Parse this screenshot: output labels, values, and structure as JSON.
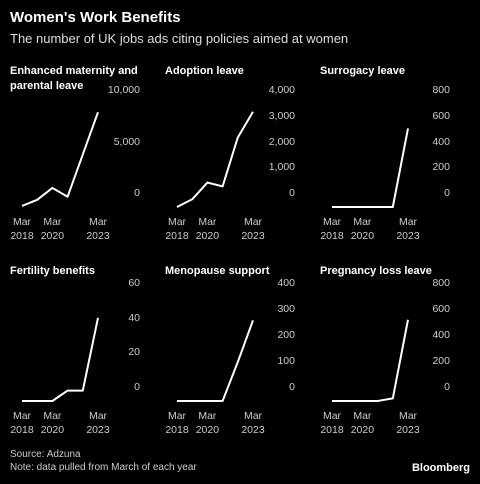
{
  "title": "Women's Work Benefits",
  "subtitle": "The number of UK jobs ads citing policies aimed at women",
  "source": "Source: Adzuna",
  "note": "Note: data pulled from March of each year",
  "brand": "Bloomberg",
  "chart_data": [
    {
      "type": "line",
      "title": "Enhanced maternity and parental leave",
      "color": "#ffffff",
      "x": [
        2018,
        2019,
        2020,
        2021,
        2022,
        2023
      ],
      "values": [
        100,
        700,
        1850,
        1000,
        5100,
        9200
      ],
      "xlim": [
        2018,
        2023
      ],
      "xticks": [
        {
          "value": 2018,
          "label": "Mar\n2018"
        },
        {
          "value": 2020,
          "label": "Mar\n2020"
        },
        {
          "value": 2023,
          "label": "Mar\n2023"
        }
      ],
      "ylim": [
        0,
        10000
      ],
      "yticks": [
        0,
        {
          "value": 5000,
          "label": "5,000"
        },
        {
          "value": 10000,
          "label": "10,000"
        }
      ]
    },
    {
      "type": "line",
      "title": "Adoption leave",
      "color": "#ffffff",
      "x": [
        2018,
        2019,
        2020,
        2021,
        2022,
        2023
      ],
      "values": [
        0,
        300,
        950,
        800,
        2700,
        3700
      ],
      "xlim": [
        2018,
        2023
      ],
      "xticks": [
        {
          "value": 2018,
          "label": "Mar\n2018"
        },
        {
          "value": 2020,
          "label": "Mar\n2020"
        },
        {
          "value": 2023,
          "label": "Mar\n2023"
        }
      ],
      "ylim": [
        0,
        4000
      ],
      "yticks": [
        0,
        {
          "value": 1000,
          "label": "1,000"
        },
        {
          "value": 2000,
          "label": "2,000"
        },
        {
          "value": 3000,
          "label": "3,000"
        },
        {
          "value": 4000,
          "label": "4,000"
        }
      ]
    },
    {
      "type": "line",
      "title": "Surrogacy leave",
      "color": "#ffffff",
      "x": [
        2018,
        2019,
        2020,
        2021,
        2022,
        2023
      ],
      "values": [
        0,
        0,
        0,
        0,
        0,
        610
      ],
      "xlim": [
        2018,
        2023
      ],
      "xticks": [
        {
          "value": 2018,
          "label": "Mar\n2018"
        },
        {
          "value": 2020,
          "label": "Mar\n2020"
        },
        {
          "value": 2023,
          "label": "Mar\n2023"
        }
      ],
      "ylim": [
        0,
        800
      ],
      "yticks": [
        0,
        200,
        400,
        600,
        800
      ]
    },
    {
      "type": "line",
      "title": "Fertility benefits",
      "color": "#ffffff",
      "x": [
        2018,
        2019,
        2020,
        2021,
        2022,
        2023
      ],
      "values": [
        0,
        0,
        0,
        6,
        6,
        48
      ],
      "xlim": [
        2018,
        2023
      ],
      "xticks": [
        {
          "value": 2018,
          "label": "Mar\n2018"
        },
        {
          "value": 2020,
          "label": "Mar\n2020"
        },
        {
          "value": 2023,
          "label": "Mar\n2023"
        }
      ],
      "ylim": [
        0,
        60
      ],
      "yticks": [
        0,
        20,
        40,
        60
      ]
    },
    {
      "type": "line",
      "title": "Menopause support",
      "color": "#ffffff",
      "x": [
        2018,
        2019,
        2020,
        2021,
        2022,
        2023
      ],
      "values": [
        0,
        0,
        0,
        0,
        150,
        310
      ],
      "xlim": [
        2018,
        2023
      ],
      "xticks": [
        {
          "value": 2018,
          "label": "Mar\n2018"
        },
        {
          "value": 2020,
          "label": "Mar\n2020"
        },
        {
          "value": 2023,
          "label": "Mar\n2023"
        }
      ],
      "ylim": [
        0,
        400
      ],
      "yticks": [
        0,
        100,
        200,
        300,
        400
      ]
    },
    {
      "type": "line",
      "title": "Pregnancy loss leave",
      "color": "#ffffff",
      "x": [
        2018,
        2019,
        2020,
        2021,
        2022,
        2023
      ],
      "values": [
        0,
        0,
        0,
        0,
        20,
        625
      ],
      "xlim": [
        2018,
        2023
      ],
      "xticks": [
        {
          "value": 2018,
          "label": "Mar\n2018"
        },
        {
          "value": 2020,
          "label": "Mar\n2020"
        },
        {
          "value": 2023,
          "label": "Mar\n2023"
        }
      ],
      "ylim": [
        0,
        800
      ],
      "yticks": [
        0,
        200,
        400,
        600,
        800
      ]
    }
  ]
}
